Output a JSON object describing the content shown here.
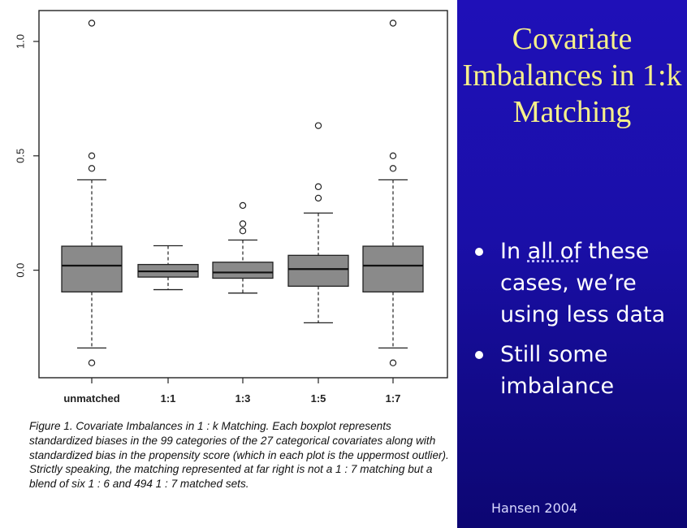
{
  "chart_data": {
    "type": "boxplot",
    "categories": [
      "unmatched",
      "1:1",
      "1:3",
      "1:5",
      "1:7"
    ],
    "boxes": [
      {
        "category": "unmatched",
        "whisker_low": -0.34,
        "q1": -0.095,
        "median": 0.02,
        "q3": 0.105,
        "whisker_high": 0.395,
        "outliers": [
          1.08,
          0.5,
          0.445,
          -0.405
        ]
      },
      {
        "category": "1:1",
        "whisker_low": -0.085,
        "q1": -0.03,
        "median": -0.005,
        "q3": 0.025,
        "whisker_high": 0.107,
        "outliers": []
      },
      {
        "category": "1:3",
        "whisker_low": -0.1,
        "q1": -0.035,
        "median": -0.01,
        "q3": 0.035,
        "whisker_high": 0.132,
        "outliers": [
          0.283,
          0.203,
          0.172
        ]
      },
      {
        "category": "1:5",
        "whisker_low": -0.23,
        "q1": -0.07,
        "median": 0.005,
        "q3": 0.065,
        "whisker_high": 0.25,
        "outliers": [
          0.632,
          0.365,
          0.315
        ]
      },
      {
        "category": "1:7",
        "whisker_low": -0.34,
        "q1": -0.095,
        "median": 0.02,
        "q3": 0.105,
        "whisker_high": 0.395,
        "outliers": [
          1.08,
          0.5,
          0.445,
          -0.405
        ]
      }
    ],
    "yticks": [
      {
        "value": 0.0,
        "label": "0.0"
      },
      {
        "value": 0.5,
        "label": "0.5"
      },
      {
        "value": 1.0,
        "label": "1.0"
      }
    ],
    "ylim": [
      -0.47,
      1.135
    ],
    "box_color": "#8a8a8a"
  },
  "figure": {
    "caption": "Figure 1. Covariate Imbalances in 1 : k Matching. Each boxplot represents standardized biases in the 99 categories of the 27 categorical covariates along with standardized bias in the propensity score (which in each plot is the uppermost outlier). Strictly speaking, the matching represented at far right is not a 1 : 7 matching but a blend of six 1 : 6 and 494 1 : 7 matched sets."
  },
  "slide": {
    "title": "Covariate Imbalances in 1:k Matching",
    "bullets": [
      {
        "prefix": "In ",
        "underlined": "all of",
        "suffix": " these cases, we’re using less data"
      },
      {
        "prefix": "Still some imbalance",
        "underlined": "",
        "suffix": ""
      }
    ],
    "credit": "Hansen 2004",
    "title_color": "#f6f08a",
    "background_color": "#1a0fa8"
  }
}
